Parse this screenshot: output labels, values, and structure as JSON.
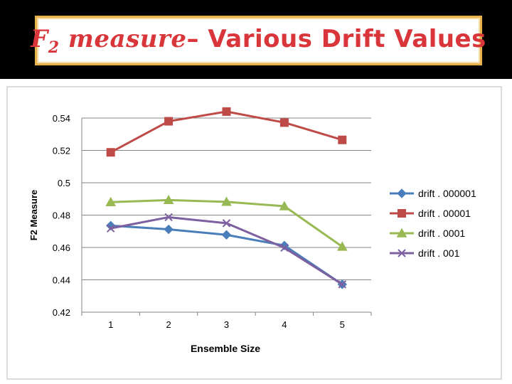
{
  "slide": {
    "title_math": "F",
    "title_sub": "2",
    "title_math2": " measure",
    "title_rest": "– Various Drift Values"
  },
  "chart_data": {
    "type": "line",
    "title": "",
    "xlabel": "Ensemble Size",
    "ylabel": "F2 Measure",
    "x": [
      1,
      2,
      3,
      4,
      5
    ],
    "categories": [
      "1",
      "2",
      "3",
      "4",
      "5"
    ],
    "ylim": [
      0.42,
      0.54
    ],
    "yticks": [
      0.42,
      0.44,
      0.46,
      0.48,
      0.5,
      0.52,
      0.54
    ],
    "ytick_labels": [
      "0.42",
      "0.44",
      "0.46",
      "0.48",
      "0.5",
      "0.52",
      "0.54"
    ],
    "grid": true,
    "legend_position": "right",
    "series": [
      {
        "name": "drift . 000001",
        "values": [
          0.4735,
          0.4712,
          0.4678,
          0.4612,
          0.4372
        ],
        "color": "#4a7ebb",
        "marker": "diamond"
      },
      {
        "name": "drift . 00001",
        "values": [
          0.5188,
          0.538,
          0.544,
          0.5372,
          0.5265
        ],
        "color": "#be4b48",
        "marker": "square"
      },
      {
        "name": "drift . 0001",
        "values": [
          0.488,
          0.4893,
          0.4882,
          0.4855,
          0.4605
        ],
        "color": "#98b954",
        "marker": "triangle"
      },
      {
        "name": "drift . 001",
        "values": [
          0.4718,
          0.4787,
          0.475,
          0.4598,
          0.4372
        ],
        "color": "#7d60a0",
        "marker": "x"
      }
    ]
  }
}
